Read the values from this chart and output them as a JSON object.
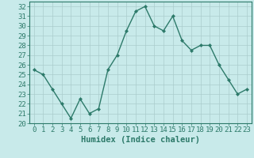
{
  "x": [
    0,
    1,
    2,
    3,
    4,
    5,
    6,
    7,
    8,
    9,
    10,
    11,
    12,
    13,
    14,
    15,
    16,
    17,
    18,
    19,
    20,
    21,
    22,
    23
  ],
  "y": [
    25.5,
    25.0,
    23.5,
    22.0,
    20.5,
    22.5,
    21.0,
    21.5,
    25.5,
    27.0,
    29.5,
    31.5,
    32.0,
    30.0,
    29.5,
    31.0,
    28.5,
    27.5,
    28.0,
    28.0,
    26.0,
    24.5,
    23.0,
    23.5
  ],
  "line_color": "#2d7a6a",
  "marker": "D",
  "marker_size": 2.0,
  "line_width": 1.0,
  "bg_color": "#c8eaea",
  "grid_color_major": "#aacccc",
  "grid_color_minor": "#bbdddd",
  "tick_color": "#2d7a6a",
  "xlabel": "Humidex (Indice chaleur)",
  "ylim": [
    20,
    32.5
  ],
  "xlim": [
    -0.5,
    23.5
  ],
  "yticks": [
    20,
    21,
    22,
    23,
    24,
    25,
    26,
    27,
    28,
    29,
    30,
    31,
    32
  ],
  "xticks": [
    0,
    1,
    2,
    3,
    4,
    5,
    6,
    7,
    8,
    9,
    10,
    11,
    12,
    13,
    14,
    15,
    16,
    17,
    18,
    19,
    20,
    21,
    22,
    23
  ],
  "xlabel_fontsize": 7.5,
  "tick_fontsize": 6.5
}
